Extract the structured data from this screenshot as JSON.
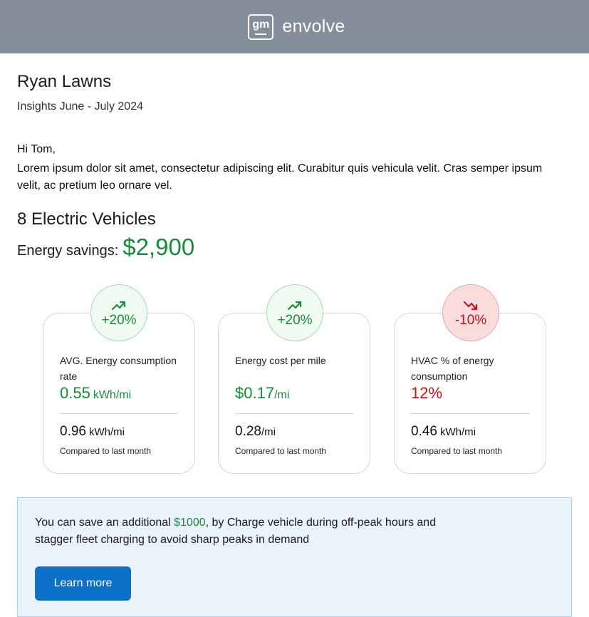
{
  "header": {
    "brand_mark": "gm",
    "brand_name": "envolve",
    "bg_color": "#848d9a"
  },
  "company": "Ryan Lawns",
  "period": "Insights June - July 2024",
  "greeting": "Hi Tom,",
  "intro": "Lorem ipsum dolor sit amet, consectetur adipiscing elit. Curabitur quis vehicula velit. Cras semper ipsum velit, ac pretium leo ornare vel.",
  "vehicles": "8 Electric Vehicles",
  "savings": {
    "label": "Energy savings:",
    "value": "$2,900"
  },
  "cards": [
    {
      "trend": "trending-up-icon",
      "change": "+20%",
      "title": "AVG. Energy consumption rate",
      "value": "0.55",
      "unit": "kWh/mi",
      "prev_value": "0.96",
      "prev_unit": "kWh/mi",
      "prev_label": "Compared to last month"
    },
    {
      "trend": "trending-up-icon",
      "change": "+20%",
      "title": "Energy cost per mile",
      "value": "$0.17",
      "unit": "/mi",
      "prev_value": "0.28",
      "prev_unit": "/mi",
      "prev_label": "Compared to last month"
    },
    {
      "trend": "trending-down-icon",
      "change": "-10%",
      "title": "HVAC % of energy consumption",
      "value": "12%",
      "unit": "",
      "prev_value": "0.46",
      "prev_unit": "kWh/mi",
      "prev_label": "Compared to last month"
    }
  ],
  "tip": {
    "prefix": "You can save an additional ",
    "amount": "$1000",
    "suffix": ", by Charge vehicle during off-peak hours and stagger fleet charging to avoid sharp peaks in demand",
    "button_label": "Learn more"
  },
  "colors": {
    "positive": "#1a8a3c",
    "negative": "#c8131a",
    "accent": "#0c72c9"
  }
}
